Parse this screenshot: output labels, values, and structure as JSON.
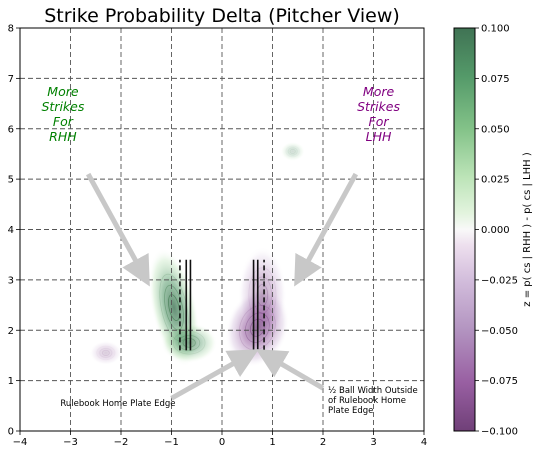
{
  "chart_data": {
    "type": "heatmap",
    "title": "Strike Probability Delta (Pitcher View)",
    "xlabel": "",
    "ylabel": "",
    "xlim": [
      -4,
      4
    ],
    "ylim": [
      0,
      8
    ],
    "x_ticks": [
      -4,
      -3,
      -2,
      -1,
      0,
      1,
      2,
      3,
      4
    ],
    "y_ticks": [
      0,
      1,
      2,
      3,
      4,
      5,
      6,
      7,
      8
    ],
    "x_tick_labels": [
      "−4",
      "−3",
      "−2",
      "−1",
      "0",
      "1",
      "2",
      "3",
      "4"
    ],
    "y_tick_labels": [
      "0",
      "1",
      "2",
      "3",
      "4",
      "5",
      "6",
      "7",
      "8"
    ],
    "grid": true,
    "colormap": "PRGn",
    "colorbar": {
      "label": "z = p( cs | RHH ) - p( cs | LHH )",
      "range": [
        -0.1,
        0.1
      ],
      "ticks": [
        0.1,
        0.075,
        0.05,
        0.025,
        0.0,
        -0.025,
        -0.05,
        -0.075,
        -0.1
      ],
      "tick_labels": [
        "0.100",
        "0.075",
        "0.050",
        "0.025",
        "0.000",
        "−0.025",
        "−0.050",
        "−0.075",
        "−0.100"
      ],
      "top_color": "#00441b",
      "mid_color": "#f7f7f7",
      "bottom_color": "#40004b"
    },
    "blobs": [
      {
        "sign": 1,
        "cx": -0.95,
        "cy": 2.45,
        "sx": 0.28,
        "sy": 0.75,
        "value": 0.06,
        "rot": -12
      },
      {
        "sign": 1,
        "cx": -0.65,
        "cy": 1.75,
        "sx": 0.35,
        "sy": 0.25,
        "value": 0.04,
        "rot": 0
      },
      {
        "sign": -1,
        "cx": 0.7,
        "cy": 2.05,
        "sx": 0.38,
        "sy": 0.5,
        "value": 0.06,
        "rot": 20
      },
      {
        "sign": -1,
        "cx": 0.8,
        "cy": 2.7,
        "sx": 0.3,
        "sy": 0.6,
        "value": 0.03,
        "rot": 0
      },
      {
        "sign": -1,
        "cx": -2.3,
        "cy": 1.55,
        "sx": 0.2,
        "sy": 0.15,
        "value": 0.012,
        "rot": 0
      },
      {
        "sign": 1,
        "cx": 1.4,
        "cy": 5.55,
        "sx": 0.15,
        "sy": 0.12,
        "value": 0.01,
        "rot": 0
      }
    ],
    "plate_lines": {
      "solid": [
        -0.708,
        -0.625,
        0.708,
        0.625
      ],
      "dashed": [
        -0.833,
        0.833
      ],
      "y_range": [
        1.6,
        3.4
      ],
      "color": "#111111"
    },
    "annotations": [
      {
        "text_lines": [
          "More",
          "Strikes",
          "For",
          "RHH"
        ],
        "color": "#008000",
        "x": -3.15,
        "y": 6.2,
        "arrow_from": [
          -2.65,
          5.1
        ],
        "arrow_to": [
          -1.5,
          3.0
        ]
      },
      {
        "text_lines": [
          "More",
          "Strikes",
          "For",
          "LHH"
        ],
        "color": "#800080",
        "x": 3.1,
        "y": 6.2,
        "arrow_from": [
          2.65,
          5.1
        ],
        "arrow_to": [
          1.5,
          3.0
        ]
      },
      {
        "text_lines": [
          "Rulebook Home Plate Edge"
        ],
        "color": "#000000",
        "x": -3.2,
        "y": 0.5,
        "arrow_from": [
          -1.0,
          0.65
        ],
        "arrow_to": [
          0.6,
          1.55
        ]
      },
      {
        "text_lines": [
          "½ Ball Width Outside",
          "of Rulebook Home",
          "Plate Edge"
        ],
        "color": "#000000",
        "x": 2.1,
        "y": 0.75,
        "arrow_from": [
          2.0,
          0.85
        ],
        "arrow_to": [
          0.8,
          1.55
        ]
      }
    ]
  }
}
